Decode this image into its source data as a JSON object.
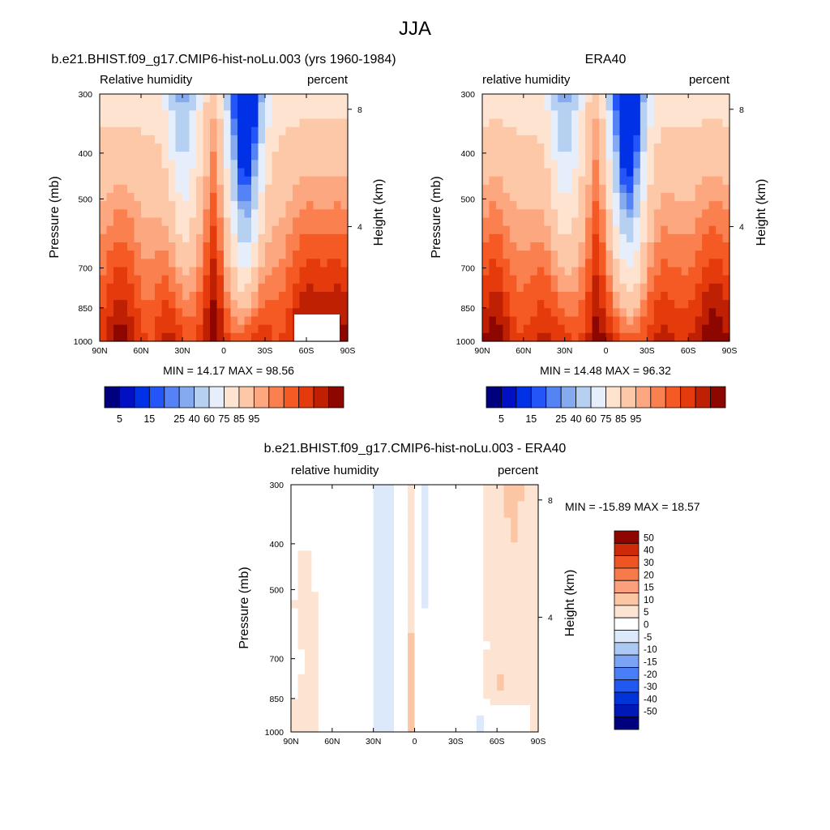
{
  "figure_title": "JJA",
  "colors": {
    "abs_palette": [
      "#00007f",
      "#0010c2",
      "#0031e7",
      "#2455f8",
      "#5582f4",
      "#85aaf0",
      "#b6d0f1",
      "#e6eefc",
      "#fee3d0",
      "#fdc8a8",
      "#fca77f",
      "#fb8050",
      "#f55a25",
      "#e53a0b",
      "#bf2003",
      "#8e0600"
    ],
    "diff_palette": [
      "#00007f",
      "#0018b8",
      "#0034d8",
      "#2058f0",
      "#4a7ef7",
      "#7ba3f4",
      "#acc9f4",
      "#dce9fb",
      "#ffffff",
      "#fde4d2",
      "#fcc6a5",
      "#fba07a",
      "#f77a4a",
      "#ee5522",
      "#cc2a08",
      "#8e0600"
    ],
    "missing": "#ffffff"
  },
  "panels": {
    "model": {
      "title": "b.e21.BHIST.f09_g17.CMIP6-hist-noLu.003 (yrs 1960-1984)",
      "left_label": "Relative humidity",
      "right_label": "percent",
      "ylabel": "Pressure (mb)",
      "y2label": "Height (km)",
      "stats": "MIN =  14.17  MAX =  98.56"
    },
    "obs": {
      "title": "ERA40",
      "left_label": "relative humidity",
      "right_label": "percent",
      "ylabel": "Pressure (mb)",
      "y2label": "Height (km)",
      "stats": "MIN =  14.48  MAX =  96.32"
    },
    "diff": {
      "title": "b.e21.BHIST.f09_g17.CMIP6-hist-noLu.003 - ERA40",
      "left_label": "relative humidity",
      "right_label": "percent",
      "ylabel": "Pressure (mb)",
      "y2label": "Height (km)",
      "stats": "MIN = -15.89  MAX =  18.57"
    }
  },
  "chart_data": [
    {
      "type": "heatmap",
      "panel": "model",
      "x_tick_labels": [
        "90N",
        "60N",
        "30N",
        "0",
        "30S",
        "60S",
        "90S"
      ],
      "x_tick_values": [
        90,
        60,
        30,
        0,
        -30,
        -60,
        -90
      ],
      "y_tick_labels": [
        "300",
        "400",
        "500",
        "700",
        "850",
        "1000"
      ],
      "y_tick_values": [
        300,
        400,
        500,
        700,
        850,
        1000
      ],
      "y2_tick_labels": [
        "8",
        "4"
      ],
      "y2_tick_values": [
        8,
        4
      ],
      "colorbar_ticks": [
        "5",
        "15",
        "25",
        "40",
        "60",
        "75",
        "85",
        "95"
      ],
      "levels": [
        5,
        10,
        15,
        20,
        25,
        30,
        40,
        50,
        60,
        70,
        75,
        80,
        85,
        90,
        95
      ],
      "min": 14.17,
      "max": 98.56,
      "missing_region": {
        "lat_from": -48,
        "lat_to": -80,
        "p_from": 935,
        "p_to": 1000
      }
    },
    {
      "type": "heatmap",
      "panel": "obs",
      "x_tick_labels": [
        "90N",
        "60N",
        "30N",
        "0",
        "30S",
        "60S",
        "90S"
      ],
      "x_tick_values": [
        90,
        60,
        30,
        0,
        -30,
        -60,
        -90
      ],
      "y_tick_labels": [
        "300",
        "400",
        "500",
        "700",
        "850",
        "1000"
      ],
      "y_tick_values": [
        300,
        400,
        500,
        700,
        850,
        1000
      ],
      "y2_tick_labels": [
        "8",
        "4"
      ],
      "y2_tick_values": [
        8,
        4
      ],
      "colorbar_ticks": [
        "5",
        "15",
        "25",
        "40",
        "60",
        "75",
        "85",
        "95"
      ],
      "levels": [
        5,
        10,
        15,
        20,
        25,
        30,
        40,
        50,
        60,
        70,
        75,
        80,
        85,
        90,
        95
      ],
      "min": 14.48,
      "max": 96.32
    },
    {
      "type": "heatmap",
      "panel": "diff",
      "x_tick_labels": [
        "90N",
        "60N",
        "30N",
        "0",
        "30S",
        "60S",
        "90S"
      ],
      "x_tick_values": [
        90,
        60,
        30,
        0,
        -30,
        -60,
        -90
      ],
      "y_tick_labels": [
        "300",
        "400",
        "500",
        "700",
        "850",
        "1000"
      ],
      "y_tick_values": [
        300,
        400,
        500,
        700,
        850,
        1000
      ],
      "y2_tick_labels": [
        "8",
        "4"
      ],
      "y2_tick_values": [
        8,
        4
      ],
      "colorbar_ticks": [
        "50",
        "40",
        "30",
        "20",
        "15",
        "10",
        "5",
        "0",
        "-5",
        "-10",
        "-15",
        "-20",
        "-30",
        "-40",
        "-50"
      ],
      "levels": [
        -50,
        -40,
        -30,
        -20,
        -15,
        -10,
        -5,
        0,
        5,
        10,
        15,
        20,
        30,
        40,
        50
      ],
      "min": -15.89,
      "max": 18.57,
      "missing_region": {
        "lat_from": -48,
        "lat_to": -80,
        "p_from": 905,
        "p_to": 1000
      }
    }
  ]
}
